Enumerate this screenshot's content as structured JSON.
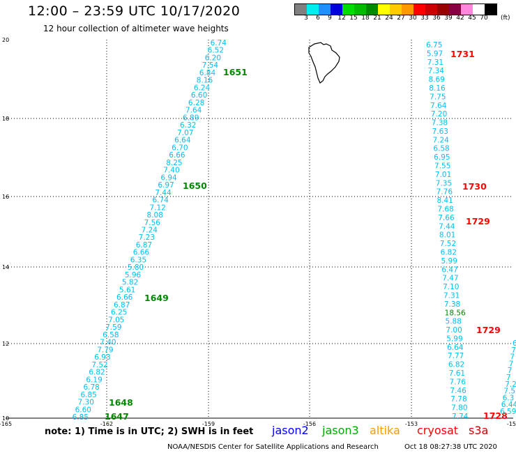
{
  "header": {
    "title": "12:00 – 23:59 UTC 10/17/2020",
    "subtitle": "12 hour collection of altimeter wave heights"
  },
  "legend": {
    "labels": [
      "3",
      "6",
      "9",
      "12",
      "15",
      "18",
      "21",
      "24",
      "27",
      "30",
      "33",
      "36",
      "39",
      "42",
      "45",
      "70"
    ],
    "unit": "(ft)",
    "colors": [
      "#808080",
      "#00eeee",
      "#1e90ff",
      "#0000dd",
      "#00dd00",
      "#00bb00",
      "#008800",
      "#ffff00",
      "#ffcc00",
      "#ff9900",
      "#ff0000",
      "#cc0000",
      "#990000",
      "#880044",
      "#ff88dd",
      "#ffffff",
      "#000000"
    ]
  },
  "map": {
    "lat_labels": [
      "20",
      "18",
      "16",
      "14",
      "12",
      "10"
    ],
    "lon_labels": [
      "-165",
      "-162",
      "-159",
      "-156",
      "-153",
      "-150"
    ],
    "land_name": "island-outline"
  },
  "tracks": {
    "color_cyan": "#00c0f0",
    "color_green": "#008800",
    "color_red": "#ff0000",
    "track1_values": [
      "6.74",
      "6.52",
      "6.20",
      "7.54",
      "6.84",
      "8.16",
      "6.24",
      "6.60",
      "6.28",
      "7.64",
      "6.89",
      "6.32",
      "7.07",
      "6.64",
      "6.70",
      "6.66",
      "8.25",
      "7.40",
      "6.94",
      "6.97",
      "7.44",
      "6.74",
      "7.12",
      "8.08",
      "7.56",
      "7.24",
      "7.23",
      "6.87",
      "6.66",
      "6.35",
      "5.80",
      "5.96",
      "5.82",
      "5.61",
      "6.66",
      "6.87",
      "6.25",
      "7.05",
      "7.59",
      "6.58",
      "7.40",
      "7.79",
      "6.93",
      "7.52",
      "6.82",
      "6.19",
      "6.78",
      "6.85",
      "7.30",
      "6.60",
      "6.85"
    ],
    "track1_times": [
      "1651",
      "1650",
      "1649",
      "1648",
      "1647"
    ],
    "track2_values": [
      "6.75",
      "5.97",
      "7.31",
      "7.34",
      "8.69",
      "8.16",
      "7.75",
      "7.64",
      "7.20",
      "7.38",
      "7.63",
      "7.24",
      "6.58",
      "6.95",
      "7.55",
      "7.01",
      "7.35",
      "7.76",
      "8.41",
      "7.68",
      "7.66",
      "7.44",
      "8.01",
      "7.52",
      "6.82",
      "5.99",
      "6.47",
      "7.47",
      "7.10",
      "7.31",
      "7.38",
      "18.56",
      "5.88",
      "7.00",
      "5.99",
      "6.64",
      "7.77",
      "6.82",
      "7.61",
      "7.76",
      "7.46",
      "7.78",
      "7.80",
      "7.74"
    ],
    "track2_times": [
      "1731",
      "1730",
      "1729",
      "1729",
      "1728"
    ],
    "track3_partial": [
      "6",
      "7",
      "7",
      "7",
      "7",
      "7",
      "7.2",
      "7.5",
      "6.3",
      "6.44",
      "6.59"
    ]
  },
  "footer": {
    "note": "note: 1) Time is in UTC; 2) SWH is in feet",
    "satellites": [
      {
        "name": "jason2",
        "color": "#0000ff"
      },
      {
        "name": "jason3",
        "color": "#00aa00"
      },
      {
        "name": "altika",
        "color": "#ff9900"
      },
      {
        "name": "cryosat",
        "color": "#ff0000"
      },
      {
        "name": "s3a",
        "color": "#cc0000"
      }
    ],
    "credit": "NOAA/NESDIS Center for Satellite Applications and Research",
    "timestamp": "Oct 18 08:27:38 UTC 2020"
  }
}
